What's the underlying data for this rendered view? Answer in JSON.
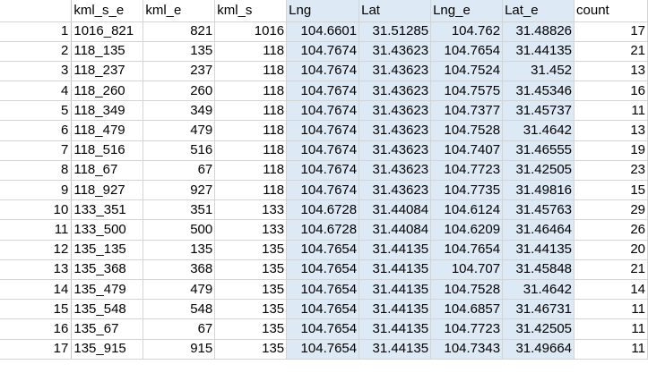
{
  "sheet": {
    "headers": [
      "kml_s_e",
      "kml_e",
      "kml_s",
      "Lng",
      "Lat",
      "Lng_e",
      "Lat_e",
      "count"
    ],
    "rows": [
      [
        "1",
        "1016_821",
        "821",
        "1016",
        "104.6601",
        "31.51285",
        "104.762",
        "31.48826",
        "17"
      ],
      [
        "2",
        "118_135",
        "135",
        "118",
        "104.7674",
        "31.43623",
        "104.7654",
        "31.44135",
        "21"
      ],
      [
        "3",
        "118_237",
        "237",
        "118",
        "104.7674",
        "31.43623",
        "104.7524",
        "31.452",
        "13"
      ],
      [
        "4",
        "118_260",
        "260",
        "118",
        "104.7674",
        "31.43623",
        "104.7575",
        "31.45346",
        "16"
      ],
      [
        "5",
        "118_349",
        "349",
        "118",
        "104.7674",
        "31.43623",
        "104.7377",
        "31.45737",
        "11"
      ],
      [
        "6",
        "118_479",
        "479",
        "118",
        "104.7674",
        "31.43623",
        "104.7528",
        "31.4642",
        "13"
      ],
      [
        "7",
        "118_516",
        "516",
        "118",
        "104.7674",
        "31.43623",
        "104.7407",
        "31.46555",
        "19"
      ],
      [
        "8",
        "118_67",
        "67",
        "118",
        "104.7674",
        "31.43623",
        "104.7723",
        "31.42505",
        "23"
      ],
      [
        "9",
        "118_927",
        "927",
        "118",
        "104.7674",
        "31.43623",
        "104.7735",
        "31.49816",
        "15"
      ],
      [
        "10",
        "133_351",
        "351",
        "133",
        "104.6728",
        "31.44084",
        "104.6124",
        "31.45763",
        "29"
      ],
      [
        "11",
        "133_500",
        "500",
        "133",
        "104.6728",
        "31.44084",
        "104.6209",
        "31.46464",
        "26"
      ],
      [
        "12",
        "135_135",
        "135",
        "135",
        "104.7654",
        "31.44135",
        "104.7654",
        "31.44135",
        "20"
      ],
      [
        "13",
        "135_368",
        "368",
        "135",
        "104.7654",
        "31.44135",
        "104.707",
        "31.45848",
        "21"
      ],
      [
        "14",
        "135_479",
        "479",
        "135",
        "104.7654",
        "31.44135",
        "104.7528",
        "31.4642",
        "14"
      ],
      [
        "15",
        "135_548",
        "548",
        "135",
        "104.7654",
        "31.44135",
        "104.6857",
        "31.46731",
        "11"
      ],
      [
        "16",
        "135_67",
        "67",
        "135",
        "104.7654",
        "31.44135",
        "104.7723",
        "31.42505",
        "11"
      ],
      [
        "17",
        "135_915",
        "915",
        "135",
        "104.7654",
        "31.44135",
        "104.7343",
        "31.49664",
        "11"
      ]
    ]
  },
  "colors": {
    "selection": "#dde9f5",
    "gridline": "#d4d4d4"
  }
}
